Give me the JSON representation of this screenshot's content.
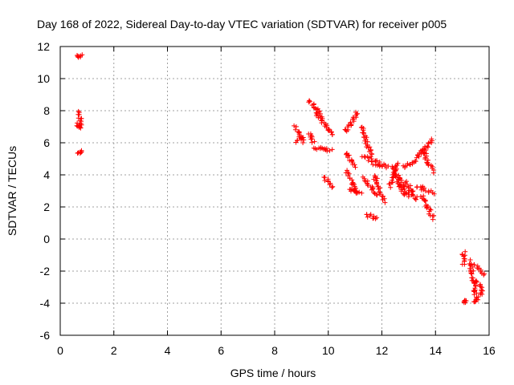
{
  "chart_data": {
    "type": "scatter",
    "title": "Day 168 of 2022, Sidereal Day-to-day VTEC variation (SDTVAR) for receiver p005",
    "xlabel": "GPS time / hours",
    "ylabel": "SDTVAR / TECUs",
    "xlim": [
      0,
      16
    ],
    "ylim": [
      -6,
      12
    ],
    "x_ticks": [
      "0",
      "2",
      "4",
      "6",
      "8",
      "10",
      "12",
      "14",
      "16"
    ],
    "y_ticks": [
      "-6",
      "-4",
      "-2",
      "0",
      "2",
      "4",
      "6",
      "8",
      "10",
      "12"
    ],
    "grid": true,
    "marker": "+",
    "color": "#ff0000",
    "segments": [
      [
        0.65,
        11.4,
        0.8,
        11.4
      ],
      [
        0.68,
        7.9,
        0.8,
        7.0
      ],
      [
        0.65,
        7.2,
        0.75,
        6.9
      ],
      [
        0.68,
        5.3,
        0.8,
        5.5
      ],
      [
        8.75,
        7.0,
        9.1,
        6.1
      ],
      [
        8.8,
        6.1,
        9.05,
        6.4
      ],
      [
        9.3,
        8.6,
        9.8,
        7.6
      ],
      [
        9.55,
        7.9,
        10.15,
        6.5
      ],
      [
        9.3,
        6.6,
        9.45,
        6.0
      ],
      [
        9.5,
        5.7,
        10.1,
        5.5
      ],
      [
        9.85,
        3.8,
        10.15,
        3.3
      ],
      [
        10.65,
        6.7,
        11.1,
        7.9
      ],
      [
        10.65,
        5.4,
        11.0,
        4.5
      ],
      [
        10.7,
        4.2,
        11.1,
        2.8
      ],
      [
        10.8,
        3.1,
        11.2,
        2.9
      ],
      [
        11.25,
        7.0,
        11.6,
        5.2
      ],
      [
        11.3,
        5.2,
        11.9,
        4.7
      ],
      [
        11.35,
        3.8,
        11.8,
        2.7
      ],
      [
        11.4,
        1.5,
        11.8,
        1.3
      ],
      [
        11.7,
        4.0,
        12.1,
        2.3
      ],
      [
        11.7,
        4.7,
        12.2,
        4.5
      ],
      [
        12.3,
        3.3,
        12.6,
        4.7
      ],
      [
        12.4,
        4.5,
        12.8,
        2.8
      ],
      [
        12.6,
        3.9,
        13.0,
        2.6
      ],
      [
        12.8,
        4.5,
        13.3,
        4.8
      ],
      [
        12.9,
        3.6,
        13.3,
        2.4
      ],
      [
        13.3,
        5.1,
        13.9,
        6.2
      ],
      [
        13.5,
        5.6,
        13.9,
        4.2
      ],
      [
        13.3,
        3.3,
        13.9,
        2.9
      ],
      [
        13.5,
        2.7,
        13.9,
        1.3
      ],
      [
        15.05,
        -0.8,
        15.05,
        -1.6
      ],
      [
        15.05,
        -3.9,
        15.1,
        -3.9
      ],
      [
        15.3,
        -1.4,
        15.5,
        -3.6
      ],
      [
        15.45,
        -1.6,
        15.8,
        -2.2
      ],
      [
        15.4,
        -4.0,
        15.7,
        -3.4
      ],
      [
        15.55,
        -2.6,
        15.75,
        -3.2
      ]
    ]
  }
}
